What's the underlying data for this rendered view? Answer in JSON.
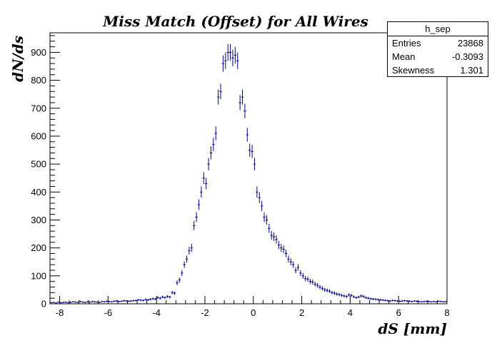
{
  "chart_data": {
    "type": "histogram",
    "title": "Miss Match (Offset) for All Wires",
    "xlabel": "dS [mm]",
    "ylabel": "dN/ds",
    "xlim": [
      -8.4,
      8.0
    ],
    "ylim": [
      0,
      970
    ],
    "xticks": [
      -8,
      -6,
      -4,
      -2,
      0,
      2,
      4,
      6,
      8
    ],
    "yticks": [
      0,
      100,
      200,
      300,
      400,
      500,
      600,
      700,
      800,
      900
    ],
    "marker_color": "#000080",
    "bin_width": 0.1,
    "x": [
      -8.35,
      -8.25,
      -8.15,
      -8.05,
      -7.95,
      -7.85,
      -7.75,
      -7.65,
      -7.55,
      -7.45,
      -7.35,
      -7.25,
      -7.15,
      -7.05,
      -6.95,
      -6.85,
      -6.75,
      -6.65,
      -6.55,
      -6.45,
      -6.35,
      -6.25,
      -6.15,
      -6.05,
      -5.95,
      -5.85,
      -5.75,
      -5.65,
      -5.55,
      -5.45,
      -5.35,
      -5.25,
      -5.15,
      -5.05,
      -4.95,
      -4.85,
      -4.75,
      -4.65,
      -4.55,
      -4.45,
      -4.35,
      -4.25,
      -4.15,
      -4.05,
      -3.95,
      -3.85,
      -3.75,
      -3.65,
      -3.55,
      -3.45,
      -3.35,
      -3.25,
      -3.15,
      -3.05,
      -2.95,
      -2.85,
      -2.75,
      -2.65,
      -2.55,
      -2.45,
      -2.35,
      -2.25,
      -2.15,
      -2.05,
      -1.95,
      -1.85,
      -1.75,
      -1.65,
      -1.55,
      -1.45,
      -1.35,
      -1.25,
      -1.15,
      -1.05,
      -0.95,
      -0.85,
      -0.75,
      -0.65,
      -0.55,
      -0.45,
      -0.35,
      -0.25,
      -0.15,
      -0.05,
      0.05,
      0.15,
      0.25,
      0.35,
      0.45,
      0.55,
      0.65,
      0.75,
      0.85,
      0.95,
      1.05,
      1.15,
      1.25,
      1.35,
      1.45,
      1.55,
      1.65,
      1.75,
      1.85,
      1.95,
      2.05,
      2.15,
      2.25,
      2.35,
      2.45,
      2.55,
      2.65,
      2.75,
      2.85,
      2.95,
      3.05,
      3.15,
      3.25,
      3.35,
      3.45,
      3.55,
      3.65,
      3.75,
      3.85,
      3.95,
      4.05,
      4.15,
      4.25,
      4.35,
      4.45,
      4.55,
      4.65,
      4.75,
      4.85,
      4.95,
      5.05,
      5.15,
      5.25,
      5.35,
      5.45,
      5.55,
      5.65,
      5.75,
      5.85,
      5.95,
      6.05,
      6.15,
      6.25,
      6.35,
      6.45,
      6.55,
      6.65,
      6.75,
      6.85,
      6.95,
      7.05,
      7.15,
      7.25,
      7.35,
      7.45,
      7.55,
      7.65,
      7.75,
      7.85,
      7.95
    ],
    "values": [
      4,
      5,
      3,
      6,
      4,
      5,
      6,
      4,
      5,
      7,
      6,
      5,
      8,
      6,
      5,
      7,
      6,
      8,
      7,
      6,
      5,
      8,
      7,
      9,
      8,
      7,
      9,
      10,
      8,
      9,
      11,
      10,
      9,
      10,
      11,
      12,
      14,
      13,
      12,
      15,
      14,
      16,
      18,
      17,
      22,
      20,
      24,
      22,
      26,
      24,
      40,
      38,
      75,
      85,
      110,
      140,
      160,
      190,
      200,
      280,
      310,
      355,
      400,
      450,
      430,
      500,
      540,
      570,
      610,
      740,
      760,
      860,
      870,
      900,
      900,
      880,
      890,
      870,
      720,
      740,
      690,
      605,
      550,
      545,
      500,
      400,
      380,
      350,
      310,
      300,
      270,
      245,
      240,
      230,
      210,
      200,
      195,
      180,
      160,
      150,
      140,
      120,
      130,
      110,
      100,
      90,
      88,
      80,
      78,
      70,
      66,
      60,
      55,
      50,
      48,
      45,
      40,
      38,
      35,
      33,
      30,
      28,
      26,
      32,
      30,
      25,
      22,
      24,
      28,
      26,
      22,
      20,
      18,
      17,
      16,
      15,
      14,
      13,
      12,
      11,
      10,
      12,
      11,
      10,
      9,
      10,
      11,
      10,
      9,
      8,
      10,
      9,
      8,
      7,
      8,
      9,
      8,
      7,
      8,
      7,
      9,
      8,
      7,
      8
    ]
  },
  "stats": {
    "name": "h_sep",
    "rows": [
      {
        "label": "Entries",
        "value": "23868"
      },
      {
        "label": "Mean",
        "value": "-0.3093"
      },
      {
        "label": "Skewness",
        "value": "1.301"
      }
    ]
  }
}
